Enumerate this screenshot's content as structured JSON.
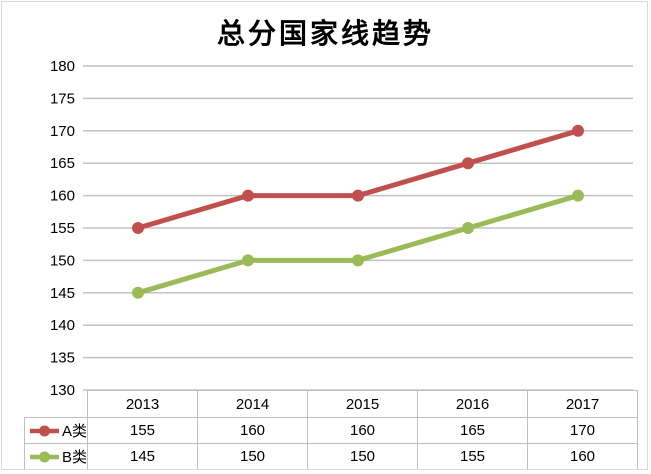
{
  "chart_data": {
    "type": "line",
    "title": "总分国家线趋势",
    "categories": [
      "2013",
      "2014",
      "2015",
      "2016",
      "2017"
    ],
    "series": [
      {
        "name": "A类",
        "values": [
          155,
          160,
          160,
          165,
          170
        ],
        "color": "#C0504D"
      },
      {
        "name": "B类",
        "values": [
          145,
          150,
          150,
          155,
          160
        ],
        "color": "#9BBB59"
      }
    ],
    "ylim": [
      130,
      180
    ],
    "yticks": [
      130,
      135,
      140,
      145,
      150,
      155,
      160,
      165,
      170,
      175,
      180
    ],
    "xlabel": "",
    "ylabel": "",
    "grid": true,
    "legend_position": "data-table-left",
    "data_table_shown": true,
    "marker": "circle"
  },
  "colors": {
    "series_a": "#C0504D",
    "series_b": "#9BBB59",
    "gridline": "#c3c3c3",
    "table_border": "#bfbfbf",
    "chart_border": "#d9d9d9",
    "text": "#000000",
    "background": "#ffffff"
  }
}
